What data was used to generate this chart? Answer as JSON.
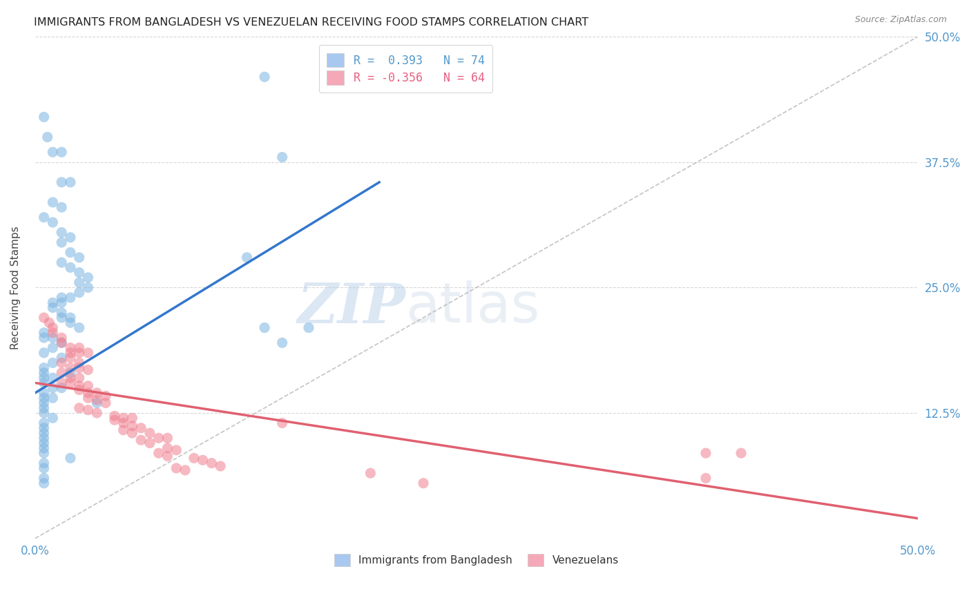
{
  "title": "IMMIGRANTS FROM BANGLADESH VS VENEZUELAN RECEIVING FOOD STAMPS CORRELATION CHART",
  "source": "Source: ZipAtlas.com",
  "ylabel": "Receiving Food Stamps",
  "ytick_labels": [
    "12.5%",
    "25.0%",
    "37.5%",
    "50.0%"
  ],
  "ytick_values": [
    0.125,
    0.25,
    0.375,
    0.5
  ],
  "xlim": [
    0,
    0.5
  ],
  "ylim": [
    0.0,
    0.5
  ],
  "legend_entries": [
    {
      "label": "R =  0.393   N = 74",
      "color": "#a8c8f0"
    },
    {
      "label": "R = -0.356   N = 64",
      "color": "#f4a8b8"
    }
  ],
  "legend_labels_bottom": [
    "Immigrants from Bangladesh",
    "Venezuelans"
  ],
  "blue_color": "#7ab3e0",
  "pink_color": "#f08090",
  "blue_scatter": [
    [
      0.005,
      0.42
    ],
    [
      0.007,
      0.4
    ],
    [
      0.01,
      0.385
    ],
    [
      0.015,
      0.385
    ],
    [
      0.015,
      0.355
    ],
    [
      0.02,
      0.355
    ],
    [
      0.01,
      0.335
    ],
    [
      0.015,
      0.33
    ],
    [
      0.005,
      0.32
    ],
    [
      0.01,
      0.315
    ],
    [
      0.015,
      0.305
    ],
    [
      0.02,
      0.3
    ],
    [
      0.015,
      0.295
    ],
    [
      0.02,
      0.285
    ],
    [
      0.025,
      0.28
    ],
    [
      0.015,
      0.275
    ],
    [
      0.02,
      0.27
    ],
    [
      0.025,
      0.265
    ],
    [
      0.03,
      0.26
    ],
    [
      0.025,
      0.255
    ],
    [
      0.03,
      0.25
    ],
    [
      0.025,
      0.245
    ],
    [
      0.02,
      0.24
    ],
    [
      0.015,
      0.24
    ],
    [
      0.01,
      0.235
    ],
    [
      0.015,
      0.235
    ],
    [
      0.01,
      0.23
    ],
    [
      0.015,
      0.225
    ],
    [
      0.02,
      0.22
    ],
    [
      0.015,
      0.22
    ],
    [
      0.02,
      0.215
    ],
    [
      0.025,
      0.21
    ],
    [
      0.005,
      0.205
    ],
    [
      0.01,
      0.2
    ],
    [
      0.005,
      0.2
    ],
    [
      0.015,
      0.195
    ],
    [
      0.01,
      0.19
    ],
    [
      0.005,
      0.185
    ],
    [
      0.015,
      0.18
    ],
    [
      0.01,
      0.175
    ],
    [
      0.005,
      0.17
    ],
    [
      0.02,
      0.165
    ],
    [
      0.005,
      0.165
    ],
    [
      0.01,
      0.16
    ],
    [
      0.005,
      0.16
    ],
    [
      0.005,
      0.155
    ],
    [
      0.01,
      0.15
    ],
    [
      0.015,
      0.15
    ],
    [
      0.005,
      0.145
    ],
    [
      0.01,
      0.14
    ],
    [
      0.005,
      0.14
    ],
    [
      0.005,
      0.135
    ],
    [
      0.035,
      0.135
    ],
    [
      0.005,
      0.13
    ],
    [
      0.005,
      0.125
    ],
    [
      0.01,
      0.12
    ],
    [
      0.005,
      0.115
    ],
    [
      0.005,
      0.11
    ],
    [
      0.005,
      0.105
    ],
    [
      0.005,
      0.1
    ],
    [
      0.005,
      0.095
    ],
    [
      0.005,
      0.09
    ],
    [
      0.005,
      0.085
    ],
    [
      0.02,
      0.08
    ],
    [
      0.005,
      0.075
    ],
    [
      0.005,
      0.07
    ],
    [
      0.005,
      0.06
    ],
    [
      0.005,
      0.055
    ],
    [
      0.13,
      0.46
    ],
    [
      0.14,
      0.38
    ],
    [
      0.12,
      0.28
    ],
    [
      0.13,
      0.21
    ],
    [
      0.14,
      0.195
    ],
    [
      0.155,
      0.21
    ]
  ],
  "pink_scatter": [
    [
      0.005,
      0.22
    ],
    [
      0.008,
      0.215
    ],
    [
      0.01,
      0.21
    ],
    [
      0.01,
      0.205
    ],
    [
      0.015,
      0.2
    ],
    [
      0.015,
      0.195
    ],
    [
      0.02,
      0.19
    ],
    [
      0.025,
      0.19
    ],
    [
      0.02,
      0.185
    ],
    [
      0.025,
      0.185
    ],
    [
      0.03,
      0.185
    ],
    [
      0.02,
      0.18
    ],
    [
      0.025,
      0.175
    ],
    [
      0.015,
      0.175
    ],
    [
      0.02,
      0.17
    ],
    [
      0.025,
      0.17
    ],
    [
      0.03,
      0.168
    ],
    [
      0.015,
      0.165
    ],
    [
      0.02,
      0.16
    ],
    [
      0.025,
      0.16
    ],
    [
      0.015,
      0.155
    ],
    [
      0.02,
      0.155
    ],
    [
      0.025,
      0.152
    ],
    [
      0.03,
      0.152
    ],
    [
      0.025,
      0.148
    ],
    [
      0.03,
      0.145
    ],
    [
      0.035,
      0.145
    ],
    [
      0.04,
      0.142
    ],
    [
      0.03,
      0.14
    ],
    [
      0.035,
      0.138
    ],
    [
      0.04,
      0.135
    ],
    [
      0.025,
      0.13
    ],
    [
      0.03,
      0.128
    ],
    [
      0.035,
      0.125
    ],
    [
      0.045,
      0.122
    ],
    [
      0.05,
      0.12
    ],
    [
      0.055,
      0.12
    ],
    [
      0.045,
      0.118
    ],
    [
      0.05,
      0.115
    ],
    [
      0.055,
      0.112
    ],
    [
      0.06,
      0.11
    ],
    [
      0.05,
      0.108
    ],
    [
      0.055,
      0.105
    ],
    [
      0.065,
      0.105
    ],
    [
      0.07,
      0.1
    ],
    [
      0.075,
      0.1
    ],
    [
      0.06,
      0.098
    ],
    [
      0.065,
      0.095
    ],
    [
      0.075,
      0.09
    ],
    [
      0.08,
      0.088
    ],
    [
      0.07,
      0.085
    ],
    [
      0.075,
      0.082
    ],
    [
      0.09,
      0.08
    ],
    [
      0.095,
      0.078
    ],
    [
      0.1,
      0.075
    ],
    [
      0.105,
      0.072
    ],
    [
      0.08,
      0.07
    ],
    [
      0.085,
      0.068
    ],
    [
      0.14,
      0.115
    ],
    [
      0.19,
      0.065
    ],
    [
      0.22,
      0.055
    ],
    [
      0.38,
      0.085
    ],
    [
      0.38,
      0.06
    ],
    [
      0.4,
      0.085
    ]
  ],
  "blue_line": [
    [
      0.0,
      0.145
    ],
    [
      0.195,
      0.355
    ]
  ],
  "pink_line": [
    [
      0.0,
      0.155
    ],
    [
      0.5,
      0.02
    ]
  ],
  "dashed_line": [
    [
      0.0,
      0.0
    ],
    [
      0.5,
      0.5
    ]
  ],
  "watermark_zip": "ZIP",
  "watermark_atlas": "atlas",
  "background_color": "#ffffff",
  "grid_color": "#cccccc"
}
